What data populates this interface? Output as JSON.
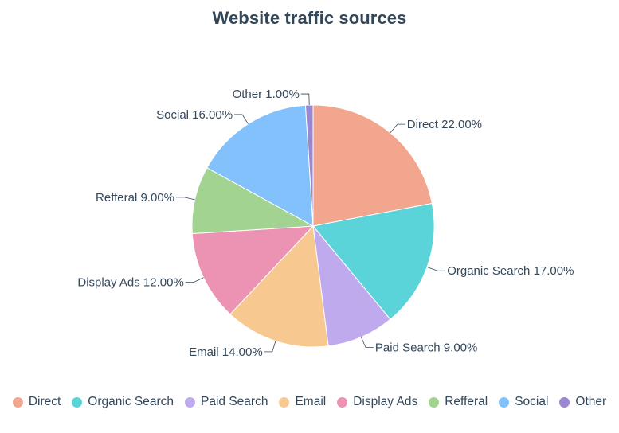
{
  "chart_data": {
    "type": "pie",
    "title": "Website traffic sources",
    "slices": [
      {
        "label": "Direct",
        "value": 22.0,
        "value_label": "22.00%",
        "color": "#f2a68d"
      },
      {
        "label": "Organic Search",
        "value": 17.0,
        "value_label": "17.00%",
        "color": "#5ad4d9"
      },
      {
        "label": "Paid Search",
        "value": 9.0,
        "value_label": "9.00%",
        "color": "#bfaaed"
      },
      {
        "label": "Email",
        "value": 14.0,
        "value_label": "14.00%",
        "color": "#f7c991"
      },
      {
        "label": "Display Ads",
        "value": 12.0,
        "value_label": "12.00%",
        "color": "#ec93b4"
      },
      {
        "label": "Refferal",
        "value": 9.0,
        "value_label": "9.00%",
        "color": "#a3d391"
      },
      {
        "label": "Social",
        "value": 16.0,
        "value_label": "16.00%",
        "color": "#82c1fb"
      },
      {
        "label": "Other",
        "value": 1.0,
        "value_label": "1.00%",
        "color": "#9b86d1"
      }
    ],
    "start_angle": "12 o'clock",
    "direction": "clockwise",
    "legend_position": "bottom"
  }
}
